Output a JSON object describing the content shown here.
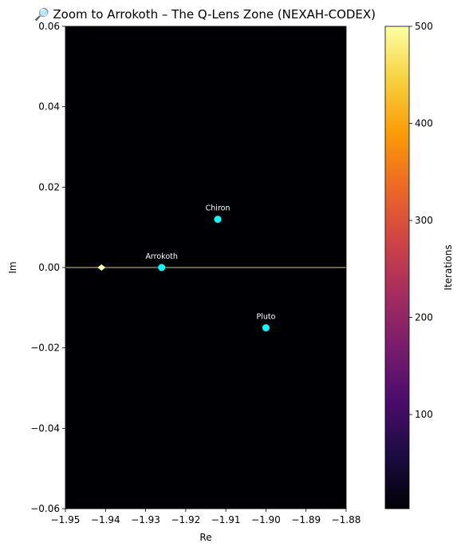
{
  "chart_data": {
    "type": "heatmap",
    "title": "🔎 Zoom to Arrokoth – The Q-Lens Zone (NEXAH-CODEX)",
    "xlabel": "Re",
    "ylabel": "Im",
    "xlim": [
      -1.95,
      -1.88
    ],
    "ylim": [
      -0.06,
      0.06
    ],
    "x_ticks": [
      "−1.95",
      "−1.94",
      "−1.93",
      "−1.92",
      "−1.91",
      "−1.90",
      "−1.89",
      "−1.88"
    ],
    "x_tick_values": [
      -1.95,
      -1.94,
      -1.93,
      -1.92,
      -1.91,
      -1.9,
      -1.89,
      -1.88
    ],
    "y_ticks": [
      "−0.06",
      "−0.04",
      "−0.02",
      "0.00",
      "0.02",
      "0.04",
      "0.06"
    ],
    "y_tick_values": [
      -0.06,
      -0.04,
      -0.02,
      0.0,
      0.02,
      0.04,
      0.06
    ],
    "colormap": "inferno",
    "background_color": "#000004",
    "real_axis_line": {
      "y": 0.0,
      "color": "#a8a070"
    },
    "bright_spot": {
      "x": -1.941,
      "y": 0.0,
      "color": "#fcffa4"
    },
    "points": [
      {
        "label": "Arrokoth",
        "x": -1.926,
        "y": 0.0
      },
      {
        "label": "Chiron",
        "x": -1.912,
        "y": 0.012
      },
      {
        "label": "Pluto",
        "x": -1.9,
        "y": -0.015
      }
    ],
    "point_color": "#00ffff",
    "colorbar": {
      "label": "Iterations",
      "min": 3,
      "max": 500,
      "ticks": [
        "100",
        "200",
        "300",
        "400",
        "500"
      ],
      "tick_values": [
        100,
        200,
        300,
        400,
        500
      ],
      "stops": [
        "#000004",
        "#1b0c41",
        "#4a0c6b",
        "#781c6d",
        "#a52c60",
        "#cf4446",
        "#ed6925",
        "#fb9b06",
        "#f7d13d",
        "#fcffa4"
      ]
    }
  }
}
